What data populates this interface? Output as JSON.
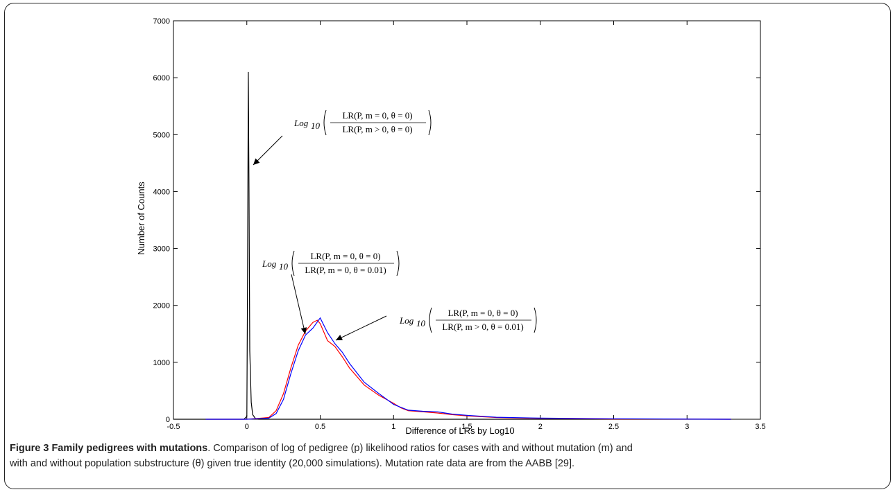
{
  "figure": {
    "label": "Figure 3",
    "title": "Family pedigrees with mutations",
    "caption_line1": ". Comparison of log of pedigree (p) likelihood ratios for cases with and without mutation (m) and",
    "caption_line2": "with and without population substructure (θ) given true identity (20,000 simulations). Mutation rate data are from the AABB [29]."
  },
  "annotations": [
    {
      "prefix": "Log",
      "sub": "10",
      "numerator": "LR(P, m = 0, θ = 0)",
      "denominator": "LR(P, m > 0, θ = 0)"
    },
    {
      "prefix": "Log",
      "sub": "10",
      "numerator": "LR(P, m = 0, θ = 0)",
      "denominator": "LR(P, m = 0, θ = 0.01)"
    },
    {
      "prefix": "Log",
      "sub": "10",
      "numerator": "LR(P, m = 0, θ = 0)",
      "denominator": "LR(P, m > 0, θ = 0.01)"
    }
  ],
  "chart_data": {
    "type": "line",
    "xlabel": "Difference of LRs by Log10",
    "ylabel": "Number of Counts",
    "xlim": [
      -0.5,
      3.5
    ],
    "ylim": [
      0,
      7000
    ],
    "xticks": [
      "-0.5",
      "0",
      "0.5",
      "1",
      "1.5",
      "2",
      "2.5",
      "3",
      "3.5"
    ],
    "yticks": [
      "0",
      "1000",
      "2000",
      "3000",
      "4000",
      "5000",
      "6000",
      "7000"
    ],
    "grid": false,
    "series": [
      {
        "color": "#000000",
        "x": [
          -0.5,
          -0.02,
          0.0,
          0.005,
          0.01,
          0.015,
          0.02,
          0.03,
          0.04,
          0.06,
          0.08,
          0.1,
          3.3
        ],
        "y": [
          0,
          0,
          50,
          2500,
          6100,
          4000,
          1200,
          300,
          80,
          10,
          0,
          0,
          0
        ]
      },
      {
        "color": "#ff0000",
        "x": [
          -0.28,
          0.0,
          0.15,
          0.2,
          0.25,
          0.3,
          0.35,
          0.4,
          0.45,
          0.48,
          0.5,
          0.55,
          0.6,
          0.65,
          0.7,
          0.8,
          0.9,
          1.0,
          1.05,
          1.1,
          1.2,
          1.3,
          1.4,
          1.5,
          1.7,
          2.0,
          2.5,
          2.85,
          3.3
        ],
        "y": [
          0,
          0,
          30,
          150,
          450,
          900,
          1300,
          1550,
          1700,
          1740,
          1680,
          1380,
          1280,
          1100,
          900,
          600,
          420,
          280,
          200,
          150,
          130,
          110,
          80,
          60,
          30,
          15,
          5,
          5,
          0
        ]
      },
      {
        "color": "#0000ff",
        "x": [
          -0.28,
          0.0,
          0.15,
          0.2,
          0.25,
          0.3,
          0.35,
          0.4,
          0.45,
          0.5,
          0.55,
          0.6,
          0.65,
          0.7,
          0.8,
          0.9,
          0.98,
          1.0,
          1.05,
          1.1,
          1.2,
          1.3,
          1.4,
          1.5,
          1.7,
          2.0,
          2.5,
          2.85,
          3.3
        ],
        "y": [
          0,
          0,
          20,
          100,
          350,
          800,
          1200,
          1480,
          1600,
          1780,
          1520,
          1330,
          1180,
          980,
          650,
          450,
          300,
          260,
          210,
          160,
          140,
          130,
          90,
          70,
          35,
          20,
          8,
          5,
          0
        ]
      }
    ]
  }
}
